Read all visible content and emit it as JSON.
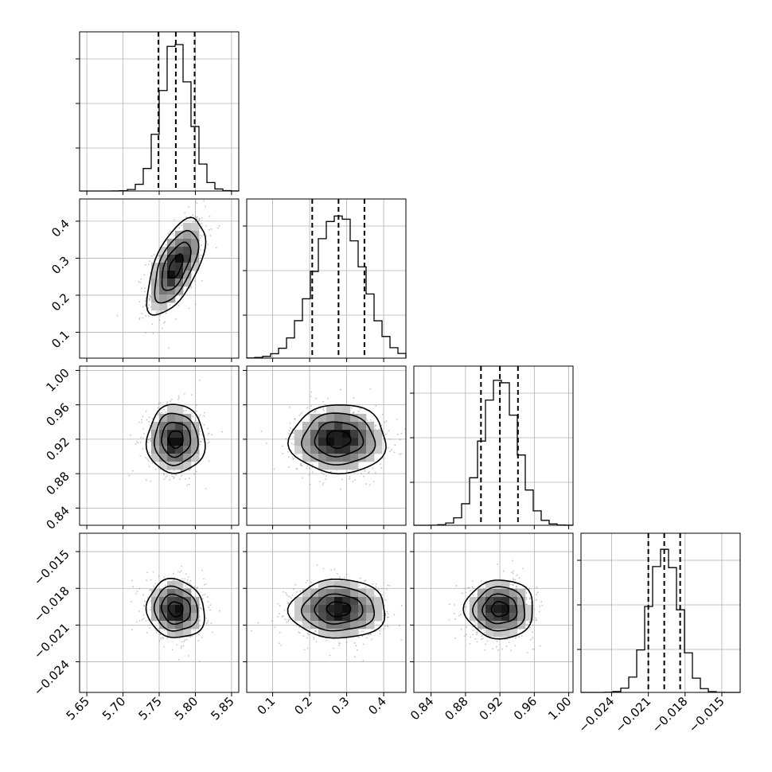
{
  "chart_data": {
    "type": "corner",
    "grid": true,
    "parameters": [
      {
        "id": "p0",
        "range": [
          5.64,
          5.86
        ],
        "ticks": [
          5.65,
          5.7,
          5.75,
          5.8,
          5.85
        ],
        "tick_labels": [
          "5.65",
          "5.70",
          "5.75",
          "5.80",
          "5.85"
        ],
        "mean": 5.773,
        "sd": 0.02,
        "quantiles": [
          5.749,
          5.773,
          5.799
        ]
      },
      {
        "id": "p1",
        "range": [
          0.03,
          0.46
        ],
        "ticks": [
          0.1,
          0.2,
          0.3,
          0.4
        ],
        "tick_labels": [
          "0.1",
          "0.2",
          "0.3",
          "0.4"
        ],
        "mean": 0.278,
        "sd": 0.065,
        "quantiles": [
          0.207,
          0.278,
          0.348
        ]
      },
      {
        "id": "p2",
        "range": [
          0.82,
          1.005
        ],
        "ticks": [
          0.84,
          0.88,
          0.92,
          0.96,
          1.0
        ],
        "tick_labels": [
          "0.84",
          "0.88",
          "0.92",
          "0.96",
          "1.00"
        ],
        "mean": 0.92,
        "sd": 0.02,
        "quantiles": [
          0.898,
          0.92,
          0.941
        ]
      },
      {
        "id": "p3",
        "range": [
          -0.0265,
          -0.0135
        ],
        "ticks": [
          -0.024,
          -0.021,
          -0.018,
          -0.015
        ],
        "tick_labels": [
          "−0.024",
          "−0.021",
          "−0.018",
          "−0.015"
        ],
        "y_tick_labels": [
          "−0.015",
          "−0.018",
          "−0.021",
          "−0.024"
        ],
        "mean": -0.0197,
        "sd": 0.0012,
        "quantiles": [
          -0.021,
          -0.0197,
          -0.0184
        ]
      }
    ],
    "correlations": {
      "1-0": 0.6,
      "2-0": 0.0,
      "2-1": 0.0,
      "3-0": -0.1,
      "3-1": 0.0,
      "3-2": 0.0
    }
  }
}
